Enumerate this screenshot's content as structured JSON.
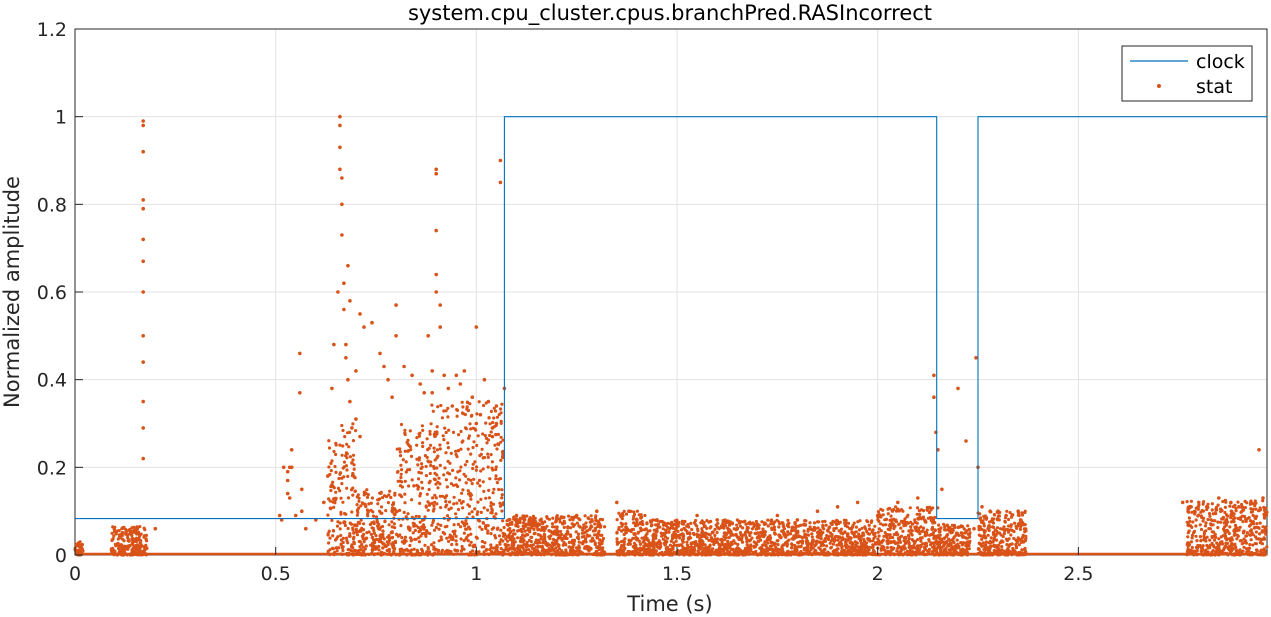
{
  "chart_data": {
    "type": "line",
    "title": "system.cpu_cluster.cpus.branchPred.RASIncorrect",
    "xlabel": "Time (s)",
    "ylabel": "Normalized amplitude",
    "xlim": [
      0,
      2.97
    ],
    "ylim": [
      0,
      1.2
    ],
    "xticks": [
      0,
      0.5,
      1,
      1.5,
      2,
      2.5
    ],
    "xtick_labels": [
      "0",
      "0.5",
      "1",
      "1.5",
      "2",
      "2.5"
    ],
    "yticks": [
      0,
      0.2,
      0.4,
      0.6,
      0.8,
      1,
      1.2
    ],
    "ytick_labels": [
      "0",
      "0.2",
      "0.4",
      "0.6",
      "0.8",
      "1",
      "1.2"
    ],
    "grid": true,
    "legend_position": "top-right",
    "colors": {
      "clock": "#0072BD",
      "stat": "#D95319"
    },
    "series": [
      {
        "name": "clock",
        "style": "line",
        "x": [
          0,
          1.07,
          1.07,
          2.147,
          2.147,
          2.25,
          2.25,
          2.97
        ],
        "y": [
          0.083,
          0.083,
          1,
          1,
          0.083,
          0.083,
          1,
          1
        ]
      },
      {
        "name": "stat",
        "style": "markers",
        "x": [
          0.17,
          0.17,
          0.17,
          0.17,
          0.17,
          0.17,
          0.17,
          0.17,
          0.17,
          0.17,
          0.17,
          0.17,
          0.17,
          0.2,
          0.51,
          0.515,
          0.52,
          0.53,
          0.53,
          0.53,
          0.535,
          0.535,
          0.54,
          0.54,
          0.55,
          0.56,
          0.56,
          0.565,
          0.565,
          0.575,
          0.6,
          0.62,
          0.63,
          0.64,
          0.645,
          0.655,
          0.66,
          0.66,
          0.66,
          0.66,
          0.665,
          0.665,
          0.665,
          0.67,
          0.67,
          0.675,
          0.675,
          0.68,
          0.68,
          0.685,
          0.685,
          0.69,
          0.69,
          0.7,
          0.7,
          0.71,
          0.71,
          0.72,
          0.74,
          0.76,
          0.77,
          0.78,
          0.79,
          0.8,
          0.8,
          0.82,
          0.84,
          0.86,
          0.87,
          0.88,
          0.89,
          0.89,
          0.9,
          0.9,
          0.9,
          0.9,
          0.9,
          0.91,
          0.91,
          0.92,
          0.93,
          0.94,
          0.95,
          0.96,
          0.97,
          0.98,
          0.99,
          1.0,
          1.0,
          1.01,
          1.02,
          1.03,
          1.04,
          1.04,
          1.05,
          1.05,
          1.06,
          1.06,
          1.07,
          1.08,
          1.1,
          1.12,
          1.15,
          1.2,
          1.25,
          1.3,
          1.35,
          1.36,
          1.38,
          1.4,
          1.45,
          1.5,
          1.55,
          1.6,
          1.65,
          1.7,
          1.75,
          1.8,
          1.85,
          1.9,
          1.95,
          2.0,
          2.05,
          2.1,
          2.14,
          2.14,
          2.145,
          2.15,
          2.16,
          2.2,
          2.22,
          2.24,
          2.245,
          2.25,
          2.26,
          2.28,
          2.3,
          2.32,
          2.35,
          2.76,
          2.78,
          2.8,
          2.82,
          2.85,
          2.88,
          2.9,
          2.93,
          2.95,
          2.96
        ],
        "y": [
          0.99,
          0.98,
          0.92,
          0.81,
          0.79,
          0.72,
          0.67,
          0.6,
          0.5,
          0.44,
          0.35,
          0.29,
          0.22,
          0.06,
          0.09,
          0.08,
          0.2,
          0.19,
          0.17,
          0.14,
          0.13,
          0.2,
          0.24,
          0.2,
          0.09,
          0.46,
          0.37,
          0.15,
          0.1,
          0.06,
          0.08,
          0.12,
          0.18,
          0.38,
          0.48,
          0.6,
          1.0,
          0.98,
          0.93,
          0.88,
          0.86,
          0.8,
          0.73,
          0.62,
          0.56,
          0.48,
          0.45,
          0.66,
          0.4,
          0.58,
          0.35,
          0.29,
          0.21,
          0.42,
          0.31,
          0.55,
          0.27,
          0.52,
          0.53,
          0.46,
          0.43,
          0.4,
          0.36,
          0.57,
          0.5,
          0.43,
          0.41,
          0.39,
          0.37,
          0.5,
          0.42,
          0.37,
          0.88,
          0.87,
          0.74,
          0.64,
          0.6,
          0.57,
          0.52,
          0.41,
          0.38,
          0.34,
          0.41,
          0.39,
          0.42,
          0.33,
          0.36,
          0.52,
          0.3,
          0.32,
          0.4,
          0.35,
          0.29,
          0.27,
          0.34,
          0.3,
          0.9,
          0.85,
          0.38,
          0.08,
          0.09,
          0.08,
          0.07,
          0.08,
          0.09,
          0.1,
          0.12,
          0.09,
          0.1,
          0.08,
          0.08,
          0.07,
          0.09,
          0.08,
          0.06,
          0.07,
          0.09,
          0.08,
          0.1,
          0.11,
          0.12,
          0.09,
          0.12,
          0.13,
          0.41,
          0.36,
          0.28,
          0.24,
          0.15,
          0.38,
          0.26,
          0.06,
          0.45,
          0.2,
          0.11,
          0.1,
          0.1,
          0.09,
          0.1,
          0.12,
          0.11,
          0.12,
          0.11,
          0.13,
          0.12,
          0.11,
          0.12,
          0.24,
          0.13
        ],
        "density_bands": [
          [
            0.0,
            0.02,
            0.0,
            0.03
          ],
          [
            0.09,
            0.18,
            0.0,
            0.065
          ],
          [
            0.63,
            0.7,
            0.0,
            0.3
          ],
          [
            0.7,
            0.8,
            0.0,
            0.15
          ],
          [
            0.8,
            0.88,
            0.0,
            0.3
          ],
          [
            0.88,
            1.07,
            0.0,
            0.35
          ],
          [
            1.07,
            1.32,
            0.0,
            0.09
          ],
          [
            1.35,
            1.42,
            0.0,
            0.1
          ],
          [
            1.42,
            2.0,
            0.0,
            0.08
          ],
          [
            2.0,
            2.15,
            0.0,
            0.11
          ],
          [
            2.15,
            2.23,
            0.0,
            0.07
          ],
          [
            2.25,
            2.37,
            0.0,
            0.1
          ],
          [
            2.77,
            2.97,
            0.0,
            0.125
          ]
        ]
      }
    ]
  }
}
